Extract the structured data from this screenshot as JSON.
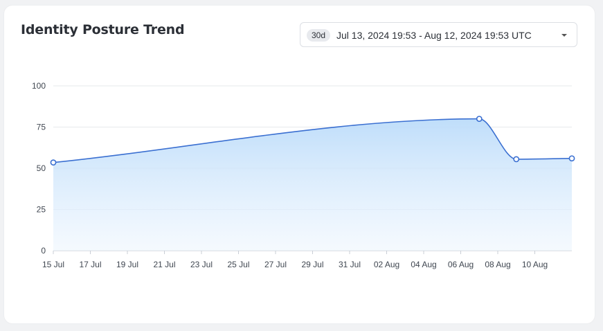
{
  "card": {
    "title": "Identity Posture Trend",
    "range": {
      "badge": "30d",
      "label": "Jul 13, 2024 19:53 - Aug 12, 2024 19:53 UTC",
      "caret_icon": "caret-down-icon"
    }
  },
  "chart_data": {
    "type": "area",
    "title": "Identity Posture Trend",
    "xlabel": "",
    "ylabel": "",
    "ylim": [
      0,
      100
    ],
    "yticks": [
      0,
      25,
      50,
      75,
      100
    ],
    "xlim": [
      "2024-07-15",
      "2024-08-12"
    ],
    "xtick_labels": [
      "15 Jul",
      "17 Jul",
      "19 Jul",
      "21 Jul",
      "23 Jul",
      "25 Jul",
      "27 Jul",
      "29 Jul",
      "31 Jul",
      "02 Aug",
      "04 Aug",
      "06 Aug",
      "08 Aug",
      "10 Aug"
    ],
    "xtick_dates": [
      "2024-07-15",
      "2024-07-17",
      "2024-07-19",
      "2024-07-21",
      "2024-07-23",
      "2024-07-25",
      "2024-07-27",
      "2024-07-29",
      "2024-07-31",
      "2024-08-02",
      "2024-08-04",
      "2024-08-06",
      "2024-08-08",
      "2024-08-10"
    ],
    "grid": true,
    "legend": "none",
    "color": "#3a6fd1",
    "series": [
      {
        "points": [
          {
            "x": "2024-07-15",
            "y": 53.5
          },
          {
            "x": "2024-08-07",
            "y": 80
          },
          {
            "x": "2024-08-09",
            "y": 55.5
          },
          {
            "x": "2024-08-12",
            "y": 56
          }
        ]
      }
    ]
  }
}
